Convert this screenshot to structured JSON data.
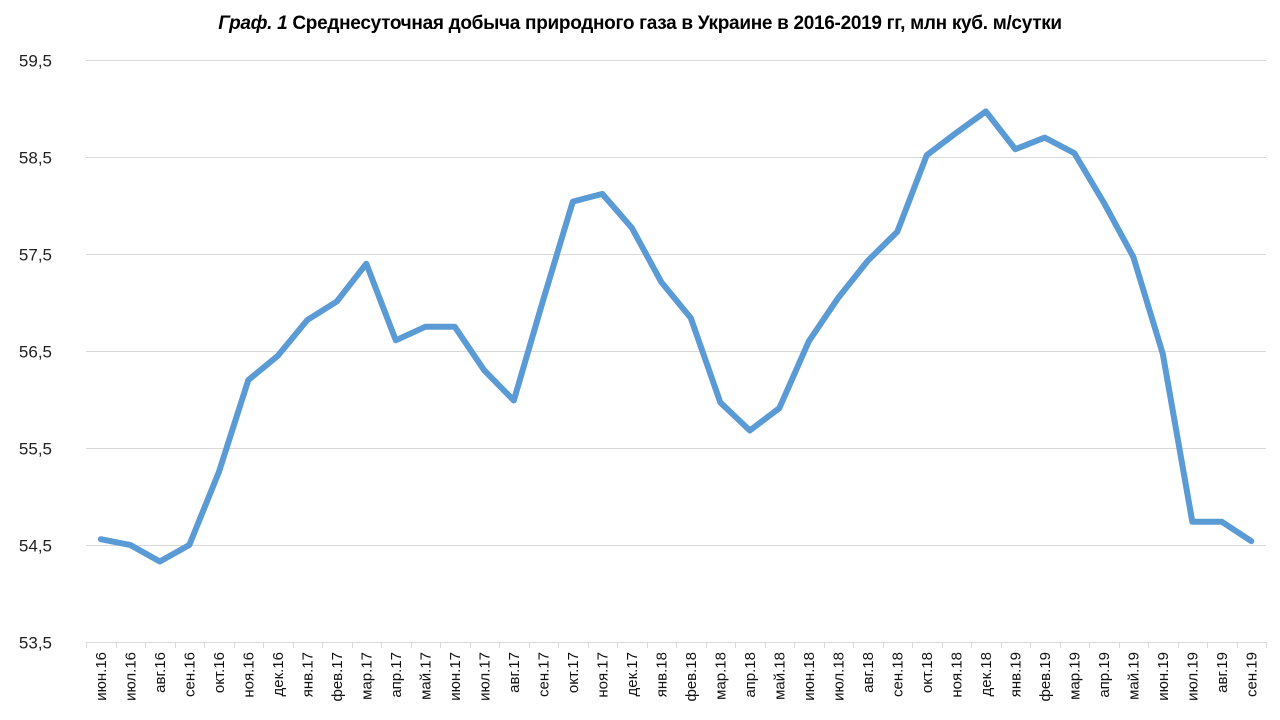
{
  "chart_data": {
    "type": "line",
    "title": "Граф. 1 Среднесуточная добыча природного газа в Украине в 2016-2019 гг, млн куб. м/сутки",
    "title_prefix": "Граф. 1",
    "title_main": "Среднесуточная добыча природного газа в Украине в 2016-2019 гг, млн куб. м/сутки",
    "xlabel": "",
    "ylabel": "",
    "ylim": [
      53.5,
      59.5
    ],
    "yticks": [
      53.5,
      54.5,
      55.5,
      56.5,
      57.5,
      58.5,
      59.5
    ],
    "ytick_labels": [
      "53,5",
      "54,5",
      "55,5",
      "56,5",
      "57,5",
      "58,5",
      "59,5"
    ],
    "grid": true,
    "legend": "none",
    "line_color": "#5B9BD5",
    "categories": [
      "июн.16",
      "июл.16",
      "авг.16",
      "сен.16",
      "окт.16",
      "ноя.16",
      "дек.16",
      "янв.17",
      "фев.17",
      "мар.17",
      "апр.17",
      "май.17",
      "июн.17",
      "июл.17",
      "авг.17",
      "сен.17",
      "окт.17",
      "ноя.17",
      "дек.17",
      "янв.18",
      "фев.18",
      "мар.18",
      "апр.18",
      "май.18",
      "июн.18",
      "июл.18",
      "авг.18",
      "сен.18",
      "окт.18",
      "ноя.18",
      "дек.18",
      "янв.19",
      "фев.19",
      "мар.19",
      "апр.19",
      "май.19",
      "июн.19",
      "июл.19",
      "авг.19",
      "сен.19"
    ],
    "series": [
      {
        "name": "Среднесуточная добыча",
        "values": [
          54.56,
          54.5,
          54.33,
          54.5,
          55.25,
          56.2,
          56.45,
          56.82,
          57.01,
          57.4,
          56.61,
          56.75,
          56.75,
          56.3,
          55.99,
          57.03,
          58.04,
          58.12,
          57.77,
          57.21,
          56.84,
          55.97,
          55.68,
          55.91,
          56.6,
          57.05,
          57.43,
          57.73,
          58.52,
          58.75,
          58.97,
          58.58,
          58.7,
          58.54,
          58.03,
          57.47,
          56.47,
          54.74,
          54.74,
          54.54
        ]
      }
    ]
  }
}
